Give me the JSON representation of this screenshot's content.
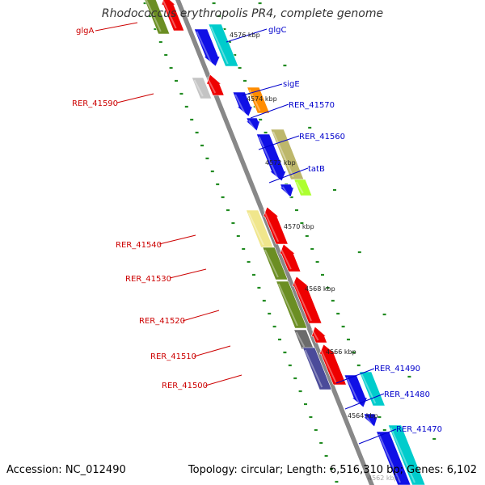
{
  "title": "Rhodococcus erythropolis PR4, complete genome",
  "footer": {
    "accession": "Accession: NC_012490",
    "summary": "Topology: circular; Length: 6,516,310 bp; Genes: 6,102"
  },
  "colors": {
    "backbone": "#888888",
    "tick": "#228b22",
    "reverse_label": "#cc0000",
    "forward_label": "#0000cc",
    "scale_label": "#222222"
  },
  "scale_labels": [
    "4576 kbp",
    "4574 kbp",
    "4572 kbp",
    "4570 kbp",
    "4568 kbp",
    "4566 kbp",
    "4564 kbp",
    "4562 kbp"
  ],
  "genes": [
    {
      "name": "glgA",
      "strand": "reverse"
    },
    {
      "name": "glgC",
      "strand": "forward"
    },
    {
      "name": "RER_41590",
      "strand": "reverse"
    },
    {
      "name": "sigE",
      "strand": "forward"
    },
    {
      "name": "RER_41570",
      "strand": "forward"
    },
    {
      "name": "RER_41560",
      "strand": "forward"
    },
    {
      "name": "tatB",
      "strand": "forward"
    },
    {
      "name": "RER_41540",
      "strand": "reverse"
    },
    {
      "name": "RER_41530",
      "strand": "reverse"
    },
    {
      "name": "RER_41520",
      "strand": "reverse"
    },
    {
      "name": "RER_41510",
      "strand": "reverse"
    },
    {
      "name": "RER_41500",
      "strand": "reverse"
    },
    {
      "name": "RER_41490",
      "strand": "forward"
    },
    {
      "name": "RER_41480",
      "strand": "forward"
    },
    {
      "name": "RER_41470",
      "strand": "forward"
    }
  ]
}
